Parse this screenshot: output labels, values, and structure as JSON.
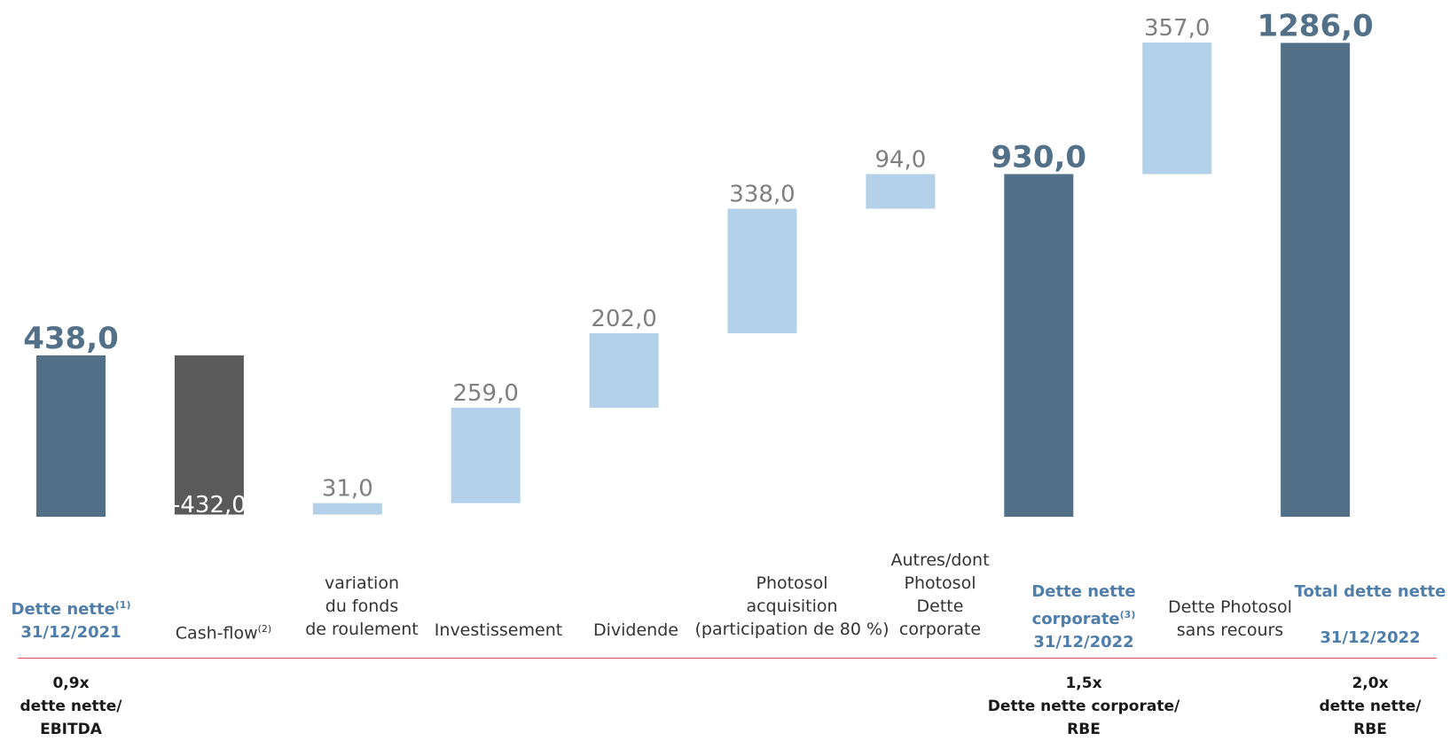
{
  "colors": {
    "total": "#527087",
    "decrease": "#5a5a5a",
    "increase": "#b3d1e8",
    "total_label": "#527087",
    "step_label": "#7f7f7f",
    "category_bold": "#4f7eab",
    "rule": "#d9534f"
  },
  "chart_data": {
    "type": "bar",
    "subtype": "waterfall",
    "categories": [
      "Dette nette 31/12/2021",
      "Cash-flow",
      "variation du fonds de roulement",
      "Investissement",
      "Dividende",
      "Photosol acquisition (participation de 80 %)",
      "Autres/dont Photosol Dette corporate",
      "Dette nette corporate 31/12/2022",
      "Dette Photosol sans recours",
      "Total dette nette 31/12/2022"
    ],
    "values": [
      438.0,
      -432.0,
      31.0,
      259.0,
      202.0,
      338.0,
      94.0,
      930.0,
      357.0,
      1286.0
    ],
    "bar_kind": [
      "total",
      "decrease",
      "increase",
      "increase",
      "increase",
      "increase",
      "increase",
      "total",
      "increase",
      "total"
    ],
    "value_labels": [
      "438,0",
      "-432,0",
      "31,0",
      "259,0",
      "202,0",
      "338,0",
      "94,0",
      "930,0",
      "357,0",
      "1286,0"
    ],
    "ylim": [
      0,
      1400
    ],
    "grid": false,
    "legend": "none"
  },
  "labels": {
    "c0_l1": "Dette nette",
    "c0_sup": "(1)",
    "c0_l2": "31/12/2021",
    "c1_l1": "Cash-flow",
    "c1_sup": "(2)",
    "c2_l1": "variation",
    "c2_l2": "du fonds",
    "c2_l3": "de roulement",
    "c3_l1": "Investissement",
    "c4_l1": "Dividende",
    "c5_l1": "Photosol",
    "c5_l2": "acquisition",
    "c5_l3": "(participation de 80 %)",
    "c6_l1": "Autres/dont",
    "c6_l2": "Photosol",
    "c6_l3": "Dette",
    "c6_l4": "corporate",
    "c7_l1": "Dette nette",
    "c7_l2": "corporate",
    "c7_sup": "(3)",
    "c7_l3": "31/12/2022",
    "c8_l1": "Dette Photosol",
    "c8_l2": "sans recours",
    "c9_l1": "Total dette nette",
    "c9_l2": "31/12/2022"
  },
  "ratios": {
    "r0_l1": "0,9x",
    "r0_l2": "dette nette/",
    "r0_l3": "EBITDA",
    "r1_l1": "1,5x",
    "r1_l2": "Dette nette corporate/",
    "r1_l3": "RBE",
    "r2_l1": "2,0x",
    "r2_l2": "dette nette/",
    "r2_l3": "RBE"
  }
}
